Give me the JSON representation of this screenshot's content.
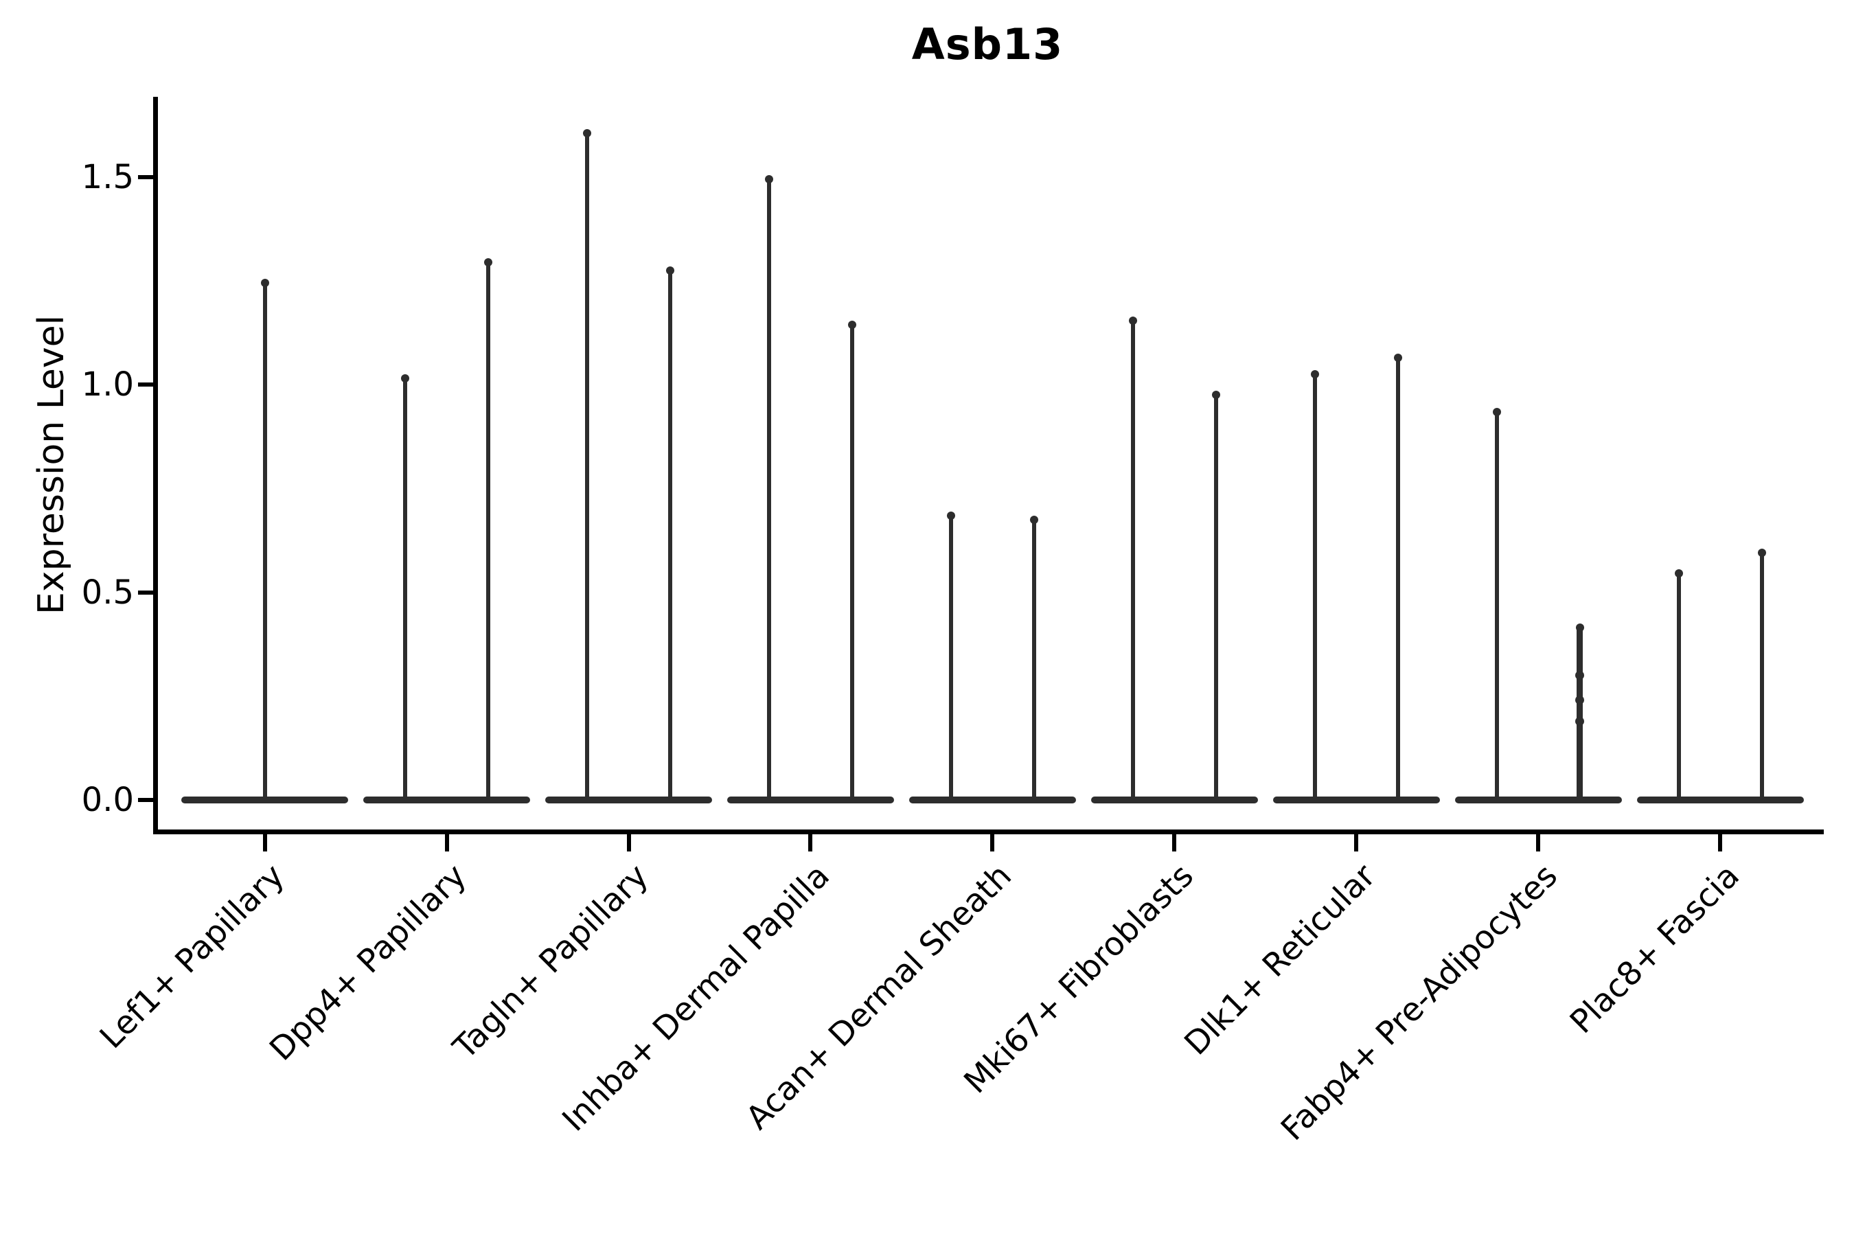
{
  "figure": {
    "background": "#ffffff"
  },
  "chart_data": {
    "type": "violin",
    "title": "Asb13",
    "ylabel": "Expression Level",
    "xlabel": "",
    "ylim": [
      -0.08,
      1.69
    ],
    "yticks": [
      "0.0",
      "0.5",
      "1.0",
      "1.5"
    ],
    "ytick_values": [
      0.0,
      0.5,
      1.0,
      1.5
    ],
    "grid": false,
    "legend": "none",
    "violin_color": "#2d2d2d",
    "axis_color": "#000000",
    "categories": [
      "Lef1+ Papillary",
      "Dpp4+ Papillary",
      "Tagln+ Papillary",
      "Inhba+ Dermal Papilla",
      "Acan+ Dermal Sheath",
      "Mki67+ Fibroblasts",
      "Dlk1+ Reticular",
      "Fabp4+ Pre-Adipocytes",
      "Plac8+ Fascia"
    ],
    "violins": [
      {
        "category": "Lef1+ Papillary",
        "spike_max": [
          1.25
        ],
        "full_width": true
      },
      {
        "category": "Dpp4+ Papillary",
        "spike_max": [
          1.02,
          1.3
        ],
        "full_width": false
      },
      {
        "category": "Tagln+ Papillary",
        "spike_max": [
          1.61,
          1.28
        ],
        "full_width": false
      },
      {
        "category": "Inhba+ Dermal Papilla",
        "spike_max": [
          1.5,
          1.15
        ],
        "full_width": false
      },
      {
        "category": "Acan+ Dermal Sheath",
        "spike_max": [
          0.69,
          0.68
        ],
        "full_width": false
      },
      {
        "category": "Mki67+ Fibroblasts",
        "spike_max": [
          1.16,
          0.98
        ],
        "full_width": false
      },
      {
        "category": "Dlk1+ Reticular",
        "spike_max": [
          1.03,
          1.07
        ],
        "full_width": false
      },
      {
        "category": "Fabp4+ Pre-Adipocytes",
        "spike_max": [
          0.94,
          0.42
        ],
        "full_width": false,
        "extra_points_on_spike": 1,
        "extra_points": [
          0.3,
          0.24,
          0.19
        ]
      },
      {
        "category": "Plac8+ Fascia",
        "spike_max": [
          0.55,
          0.6
        ],
        "full_width": false
      }
    ],
    "notes": "Sparse single-cell expression: each violin collapses to a wide flat base at 0 with a thin density spike up to the max expressing cells. First category shows one full-width violin; all others show two half-width violins."
  }
}
